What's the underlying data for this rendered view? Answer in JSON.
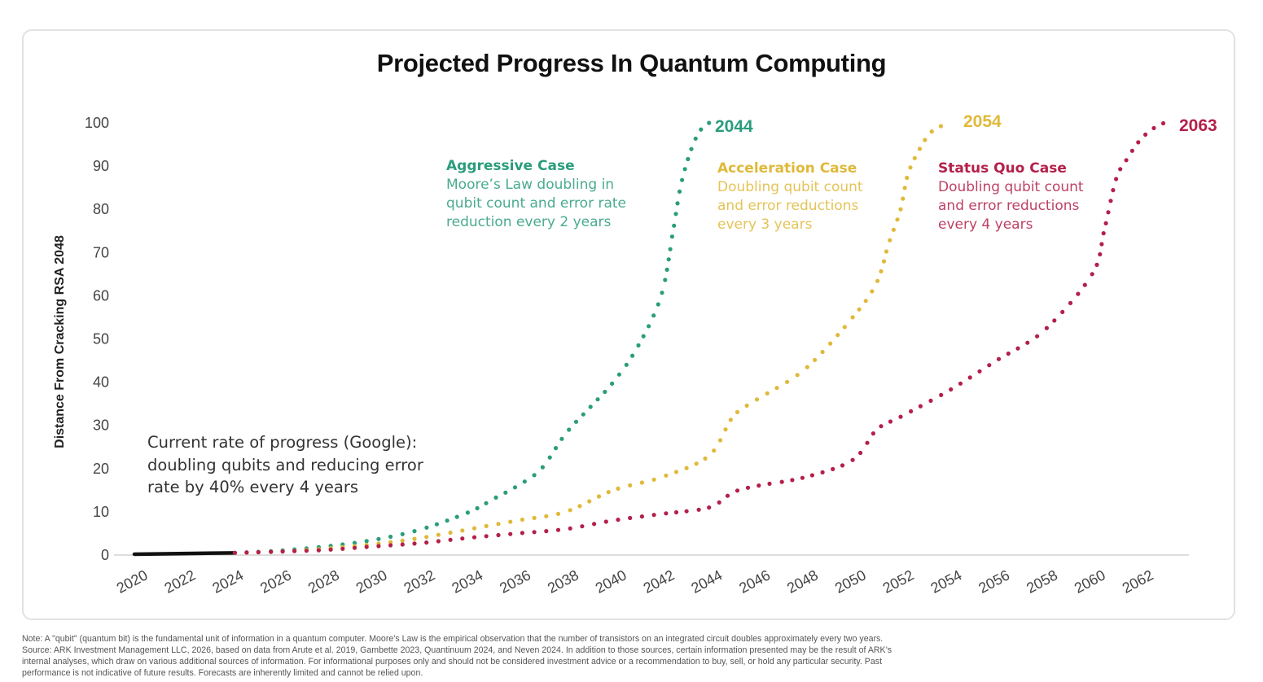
{
  "title": "Projected Progress In Quantum Computing",
  "colors": {
    "aggressive": "#2a9d7c",
    "acceleration": "#e0b93a",
    "status_quo": "#b3204a",
    "current": "#111111",
    "axis": "#dddddd"
  },
  "annotations": {
    "aggressive": {
      "head": "Aggressive Case",
      "lines": [
        "Moore’s Law doubling in",
        "qubit count and error rate",
        "reduction every 2 years"
      ],
      "end_label": "2044"
    },
    "acceleration": {
      "head": "Acceleration Case",
      "lines": [
        "Doubling qubit count",
        "and error reductions",
        "every 3 years"
      ],
      "end_label": "2054"
    },
    "status_quo": {
      "head": "Status Quo Case",
      "lines": [
        "Doubling qubit count",
        "and error reductions",
        "every 4 years"
      ],
      "end_label": "2063"
    },
    "current": {
      "lines": [
        "Current rate of progress (Google):",
        "doubling qubits and reducing error",
        "rate by 40% every 4 years"
      ]
    }
  },
  "note": {
    "lines": [
      "Note: A \"qubit\" (quantum bit) is the fundamental unit of information in a quantum computer. Moore’s Law is the empirical observation that the number of transistors on an integrated circuit doubles approximately every two years.",
      "Source: ARK Investment Management LLC, 2026, based on data from Arute et al. 2019, Gambette 2023, Quantinuum 2024, and Neven 2024. In addition to those sources, certain information presented may be the result of ARK’s",
      "internal analyses, which draw on various additional sources of information. For informational purposes only and should not be considered investment advice or a recommendation to buy, sell, or hold any particular security. Past",
      "performance is not indicative of future results. Forecasts are inherently limited and cannot be relied upon."
    ]
  },
  "chart_data": {
    "type": "line",
    "title": "Projected Progress In Quantum Computing",
    "xlabel": "",
    "ylabel": "Distance From Cracking RSA 2048",
    "xlim": [
      2020,
      2063.5
    ],
    "ylim": [
      0,
      100
    ],
    "x_ticks": [
      2020,
      2022,
      2024,
      2026,
      2028,
      2030,
      2032,
      2034,
      2036,
      2038,
      2040,
      2042,
      2044,
      2046,
      2048,
      2050,
      2052,
      2054,
      2056,
      2058,
      2060,
      2062
    ],
    "y_ticks": [
      0,
      10,
      20,
      30,
      40,
      50,
      60,
      70,
      80,
      90,
      100
    ],
    "grid": false,
    "legend": "none (inline annotations)",
    "series": [
      {
        "name": "Current rate of progress (Google)",
        "key": "current",
        "style": "solid",
        "points": [
          [
            2020,
            0.2
          ],
          [
            2024.2,
            0.5
          ]
        ]
      },
      {
        "name": "Aggressive Case",
        "key": "aggressive",
        "style": "dotted",
        "points": [
          [
            2024.2,
            0.5
          ],
          [
            2026,
            1
          ],
          [
            2028,
            2
          ],
          [
            2030,
            3.5
          ],
          [
            2032,
            6
          ],
          [
            2034,
            10
          ],
          [
            2035,
            13
          ],
          [
            2036,
            16
          ],
          [
            2037,
            20
          ],
          [
            2038,
            28
          ],
          [
            2039,
            34
          ],
          [
            2040,
            40
          ],
          [
            2041,
            48
          ],
          [
            2042,
            60
          ],
          [
            2042.5,
            75
          ],
          [
            2042.8,
            85
          ],
          [
            2043.2,
            93
          ],
          [
            2043.6,
            98
          ],
          [
            2044,
            100
          ]
        ]
      },
      {
        "name": "Acceleration Case",
        "key": "acceleration",
        "style": "dotted",
        "points": [
          [
            2024.2,
            0.5
          ],
          [
            2026,
            0.8
          ],
          [
            2028,
            1.5
          ],
          [
            2030,
            2.5
          ],
          [
            2032,
            4
          ],
          [
            2034,
            6
          ],
          [
            2036,
            8
          ],
          [
            2038,
            10
          ],
          [
            2040,
            15
          ],
          [
            2042,
            18
          ],
          [
            2044,
            23
          ],
          [
            2045,
            32
          ],
          [
            2046,
            36
          ],
          [
            2048,
            43
          ],
          [
            2050,
            55
          ],
          [
            2051,
            63
          ],
          [
            2051.5,
            72
          ],
          [
            2052,
            80
          ],
          [
            2052.3,
            88
          ],
          [
            2052.8,
            94
          ],
          [
            2053.3,
            98
          ],
          [
            2054,
            100
          ]
        ]
      },
      {
        "name": "Status Quo Case",
        "key": "status_quo",
        "style": "dotted",
        "points": [
          [
            2024.2,
            0.5
          ],
          [
            2026,
            0.8
          ],
          [
            2028,
            1.2
          ],
          [
            2030,
            2
          ],
          [
            2032,
            2.8
          ],
          [
            2034,
            4
          ],
          [
            2036,
            5
          ],
          [
            2038,
            6
          ],
          [
            2040,
            8
          ],
          [
            2042,
            9.5
          ],
          [
            2044,
            11
          ],
          [
            2045,
            14.5
          ],
          [
            2046,
            16
          ],
          [
            2048,
            18
          ],
          [
            2050,
            22
          ],
          [
            2051,
            29
          ],
          [
            2052,
            32
          ],
          [
            2054,
            38
          ],
          [
            2056,
            45
          ],
          [
            2058,
            52
          ],
          [
            2060,
            65
          ],
          [
            2060.5,
            75
          ],
          [
            2061,
            87
          ],
          [
            2061.5,
            92
          ],
          [
            2062,
            96
          ],
          [
            2062.5,
            98.5
          ],
          [
            2063,
            100
          ]
        ]
      }
    ]
  }
}
